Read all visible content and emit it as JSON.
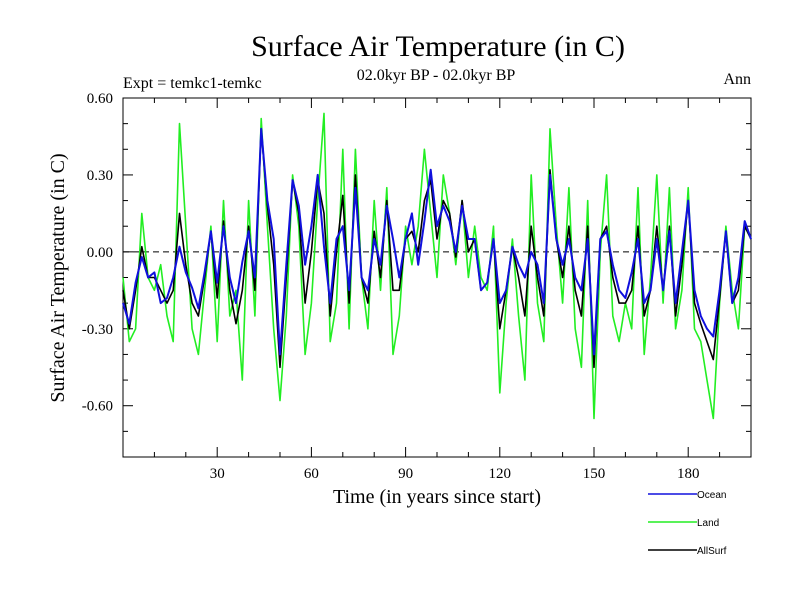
{
  "chart_data": {
    "type": "line",
    "title": "Surface Air Temperature (in C)",
    "subtitle": "02.0kyr BP - 02.0kyr BP",
    "left_label": "Expt = temkc1-temkc",
    "right_label": "Ann",
    "xlabel": "Time (in years since start)",
    "ylabel": "Surface Air Temperature (in C)",
    "xlim": [
      0,
      200
    ],
    "ylim": [
      -0.8,
      0.6
    ],
    "x_ticks": [
      30,
      60,
      90,
      120,
      150,
      180
    ],
    "x_tick_labels": [
      "30",
      "60",
      "90",
      "120",
      "150",
      "180"
    ],
    "y_ticks": [
      0.6,
      0.3,
      0.0,
      -0.3,
      -0.6
    ],
    "y_tick_labels": [
      "0.60",
      "0.30",
      "0.00",
      "-0.30",
      "-0.60"
    ],
    "zero_line": true,
    "legend_position": "bottom-right",
    "series": [
      {
        "name": "Ocean",
        "color": "#1010dd",
        "points": [
          [
            0,
            -0.2
          ],
          [
            2,
            -0.28
          ],
          [
            4,
            -0.12
          ],
          [
            6,
            -0.02
          ],
          [
            8,
            -0.1
          ],
          [
            10,
            -0.08
          ],
          [
            12,
            -0.2
          ],
          [
            14,
            -0.18
          ],
          [
            16,
            -0.1
          ],
          [
            18,
            0.02
          ],
          [
            20,
            -0.08
          ],
          [
            22,
            -0.14
          ],
          [
            24,
            -0.22
          ],
          [
            26,
            -0.08
          ],
          [
            28,
            0.08
          ],
          [
            30,
            -0.12
          ],
          [
            32,
            0.1
          ],
          [
            34,
            -0.1
          ],
          [
            36,
            -0.2
          ],
          [
            38,
            -0.04
          ],
          [
            40,
            0.08
          ],
          [
            42,
            -0.1
          ],
          [
            44,
            0.48
          ],
          [
            46,
            0.2
          ],
          [
            48,
            0.05
          ],
          [
            50,
            -0.4
          ],
          [
            52,
            -0.05
          ],
          [
            54,
            0.28
          ],
          [
            56,
            0.18
          ],
          [
            58,
            -0.05
          ],
          [
            60,
            0.1
          ],
          [
            62,
            0.3
          ],
          [
            64,
            0.02
          ],
          [
            66,
            -0.2
          ],
          [
            68,
            0.05
          ],
          [
            70,
            0.1
          ],
          [
            72,
            -0.15
          ],
          [
            74,
            0.25
          ],
          [
            76,
            -0.1
          ],
          [
            78,
            -0.15
          ],
          [
            80,
            0.05
          ],
          [
            82,
            -0.05
          ],
          [
            84,
            0.18
          ],
          [
            86,
            0.05
          ],
          [
            88,
            -0.1
          ],
          [
            90,
            0.05
          ],
          [
            92,
            0.15
          ],
          [
            94,
            -0.05
          ],
          [
            96,
            0.12
          ],
          [
            98,
            0.32
          ],
          [
            100,
            0.1
          ],
          [
            102,
            0.18
          ],
          [
            104,
            0.12
          ],
          [
            106,
            0.0
          ],
          [
            108,
            0.18
          ],
          [
            110,
            0.05
          ],
          [
            112,
            0.05
          ],
          [
            114,
            -0.15
          ],
          [
            116,
            -0.12
          ],
          [
            118,
            0.05
          ],
          [
            120,
            -0.2
          ],
          [
            122,
            -0.15
          ],
          [
            124,
            0.02
          ],
          [
            126,
            -0.05
          ],
          [
            128,
            -0.1
          ],
          [
            130,
            0.0
          ],
          [
            132,
            -0.05
          ],
          [
            134,
            -0.2
          ],
          [
            136,
            0.3
          ],
          [
            138,
            0.05
          ],
          [
            140,
            -0.05
          ],
          [
            142,
            0.05
          ],
          [
            144,
            -0.1
          ],
          [
            146,
            -0.15
          ],
          [
            148,
            0.05
          ],
          [
            150,
            -0.4
          ],
          [
            152,
            0.05
          ],
          [
            154,
            0.08
          ],
          [
            156,
            -0.05
          ],
          [
            158,
            -0.15
          ],
          [
            160,
            -0.18
          ],
          [
            162,
            -0.08
          ],
          [
            164,
            0.05
          ],
          [
            166,
            -0.2
          ],
          [
            168,
            -0.15
          ],
          [
            170,
            0.05
          ],
          [
            172,
            -0.15
          ],
          [
            174,
            0.08
          ],
          [
            176,
            -0.2
          ],
          [
            178,
            0.0
          ],
          [
            180,
            0.2
          ],
          [
            182,
            -0.15
          ],
          [
            184,
            -0.25
          ],
          [
            186,
            -0.3
          ],
          [
            188,
            -0.33
          ],
          [
            190,
            -0.15
          ],
          [
            192,
            0.08
          ],
          [
            194,
            -0.2
          ],
          [
            196,
            -0.1
          ],
          [
            198,
            0.12
          ],
          [
            200,
            0.05
          ]
        ]
      },
      {
        "name": "Land",
        "color": "#22ee22",
        "points": [
          [
            0,
            -0.1
          ],
          [
            2,
            -0.35
          ],
          [
            4,
            -0.3
          ],
          [
            6,
            0.15
          ],
          [
            8,
            -0.1
          ],
          [
            10,
            -0.15
          ],
          [
            12,
            -0.05
          ],
          [
            14,
            -0.25
          ],
          [
            16,
            -0.35
          ],
          [
            18,
            0.5
          ],
          [
            20,
            0.1
          ],
          [
            22,
            -0.3
          ],
          [
            24,
            -0.4
          ],
          [
            26,
            -0.15
          ],
          [
            28,
            0.1
          ],
          [
            30,
            -0.35
          ],
          [
            32,
            0.2
          ],
          [
            34,
            -0.25
          ],
          [
            36,
            -0.15
          ],
          [
            38,
            -0.5
          ],
          [
            40,
            0.2
          ],
          [
            42,
            -0.25
          ],
          [
            44,
            0.52
          ],
          [
            46,
            0.1
          ],
          [
            48,
            -0.3
          ],
          [
            50,
            -0.58
          ],
          [
            52,
            -0.25
          ],
          [
            54,
            0.3
          ],
          [
            56,
            0.1
          ],
          [
            58,
            -0.4
          ],
          [
            60,
            -0.2
          ],
          [
            62,
            0.2
          ],
          [
            64,
            0.54
          ],
          [
            66,
            -0.35
          ],
          [
            68,
            -0.2
          ],
          [
            70,
            0.4
          ],
          [
            72,
            -0.3
          ],
          [
            74,
            0.4
          ],
          [
            76,
            -0.1
          ],
          [
            78,
            -0.3
          ],
          [
            80,
            0.2
          ],
          [
            82,
            -0.15
          ],
          [
            84,
            0.25
          ],
          [
            86,
            -0.4
          ],
          [
            88,
            -0.25
          ],
          [
            90,
            0.1
          ],
          [
            92,
            -0.05
          ],
          [
            94,
            0.1
          ],
          [
            96,
            0.4
          ],
          [
            98,
            0.15
          ],
          [
            100,
            -0.1
          ],
          [
            102,
            0.3
          ],
          [
            104,
            0.15
          ],
          [
            106,
            -0.05
          ],
          [
            108,
            0.2
          ],
          [
            110,
            -0.1
          ],
          [
            112,
            0.1
          ],
          [
            114,
            -0.1
          ],
          [
            116,
            -0.15
          ],
          [
            118,
            0.1
          ],
          [
            120,
            -0.55
          ],
          [
            122,
            -0.2
          ],
          [
            124,
            0.05
          ],
          [
            126,
            -0.25
          ],
          [
            128,
            -0.5
          ],
          [
            130,
            0.3
          ],
          [
            132,
            -0.2
          ],
          [
            134,
            -0.35
          ],
          [
            136,
            0.48
          ],
          [
            138,
            0.1
          ],
          [
            140,
            -0.2
          ],
          [
            142,
            0.25
          ],
          [
            144,
            -0.3
          ],
          [
            146,
            -0.45
          ],
          [
            148,
            0.2
          ],
          [
            150,
            -0.65
          ],
          [
            152,
            0.0
          ],
          [
            154,
            0.3
          ],
          [
            156,
            -0.25
          ],
          [
            158,
            -0.35
          ],
          [
            160,
            -0.2
          ],
          [
            162,
            -0.3
          ],
          [
            164,
            0.25
          ],
          [
            166,
            -0.4
          ],
          [
            168,
            -0.1
          ],
          [
            170,
            0.3
          ],
          [
            172,
            -0.2
          ],
          [
            174,
            0.25
          ],
          [
            176,
            -0.3
          ],
          [
            178,
            -0.15
          ],
          [
            180,
            0.25
          ],
          [
            182,
            -0.3
          ],
          [
            184,
            -0.35
          ],
          [
            186,
            -0.5
          ],
          [
            188,
            -0.65
          ],
          [
            190,
            -0.2
          ],
          [
            192,
            0.1
          ],
          [
            194,
            -0.15
          ],
          [
            196,
            -0.3
          ],
          [
            198,
            0.1
          ],
          [
            200,
            0.05
          ]
        ]
      },
      {
        "name": "AllSurf",
        "color": "#000000",
        "points": [
          [
            0,
            -0.15
          ],
          [
            2,
            -0.3
          ],
          [
            4,
            -0.15
          ],
          [
            6,
            0.02
          ],
          [
            8,
            -0.1
          ],
          [
            10,
            -0.1
          ],
          [
            12,
            -0.15
          ],
          [
            14,
            -0.2
          ],
          [
            16,
            -0.15
          ],
          [
            18,
            0.15
          ],
          [
            20,
            -0.05
          ],
          [
            22,
            -0.2
          ],
          [
            24,
            -0.25
          ],
          [
            26,
            -0.1
          ],
          [
            28,
            0.08
          ],
          [
            30,
            -0.18
          ],
          [
            32,
            0.12
          ],
          [
            34,
            -0.15
          ],
          [
            36,
            -0.28
          ],
          [
            38,
            -0.15
          ],
          [
            40,
            0.1
          ],
          [
            42,
            -0.15
          ],
          [
            44,
            0.48
          ],
          [
            46,
            0.18
          ],
          [
            48,
            -0.05
          ],
          [
            50,
            -0.45
          ],
          [
            52,
            -0.1
          ],
          [
            54,
            0.28
          ],
          [
            56,
            0.15
          ],
          [
            58,
            -0.2
          ],
          [
            60,
            0.0
          ],
          [
            62,
            0.28
          ],
          [
            64,
            0.15
          ],
          [
            66,
            -0.25
          ],
          [
            68,
            0.0
          ],
          [
            70,
            0.22
          ],
          [
            72,
            -0.2
          ],
          [
            74,
            0.3
          ],
          [
            76,
            -0.1
          ],
          [
            78,
            -0.2
          ],
          [
            80,
            0.08
          ],
          [
            82,
            -0.1
          ],
          [
            84,
            0.2
          ],
          [
            86,
            -0.15
          ],
          [
            88,
            -0.15
          ],
          [
            90,
            0.05
          ],
          [
            92,
            0.08
          ],
          [
            94,
            0.0
          ],
          [
            96,
            0.2
          ],
          [
            98,
            0.28
          ],
          [
            100,
            0.05
          ],
          [
            102,
            0.2
          ],
          [
            104,
            0.15
          ],
          [
            106,
            -0.02
          ],
          [
            108,
            0.2
          ],
          [
            110,
            0.0
          ],
          [
            112,
            0.05
          ],
          [
            114,
            -0.15
          ],
          [
            116,
            -0.12
          ],
          [
            118,
            0.05
          ],
          [
            120,
            -0.3
          ],
          [
            122,
            -0.15
          ],
          [
            124,
            0.02
          ],
          [
            126,
            -0.1
          ],
          [
            128,
            -0.25
          ],
          [
            130,
            0.1
          ],
          [
            132,
            -0.1
          ],
          [
            134,
            -0.25
          ],
          [
            136,
            0.32
          ],
          [
            138,
            0.05
          ],
          [
            140,
            -0.1
          ],
          [
            142,
            0.1
          ],
          [
            144,
            -0.15
          ],
          [
            146,
            -0.25
          ],
          [
            148,
            0.1
          ],
          [
            150,
            -0.45
          ],
          [
            152,
            0.05
          ],
          [
            154,
            0.1
          ],
          [
            156,
            -0.1
          ],
          [
            158,
            -0.2
          ],
          [
            160,
            -0.2
          ],
          [
            162,
            -0.15
          ],
          [
            164,
            0.1
          ],
          [
            166,
            -0.25
          ],
          [
            168,
            -0.15
          ],
          [
            170,
            0.1
          ],
          [
            172,
            -0.15
          ],
          [
            174,
            0.1
          ],
          [
            176,
            -0.25
          ],
          [
            178,
            -0.05
          ],
          [
            180,
            0.2
          ],
          [
            182,
            -0.2
          ],
          [
            184,
            -0.28
          ],
          [
            186,
            -0.35
          ],
          [
            188,
            -0.42
          ],
          [
            190,
            -0.18
          ],
          [
            192,
            0.08
          ],
          [
            194,
            -0.2
          ],
          [
            196,
            -0.15
          ],
          [
            198,
            0.1
          ],
          [
            200,
            0.05
          ]
        ]
      }
    ]
  }
}
